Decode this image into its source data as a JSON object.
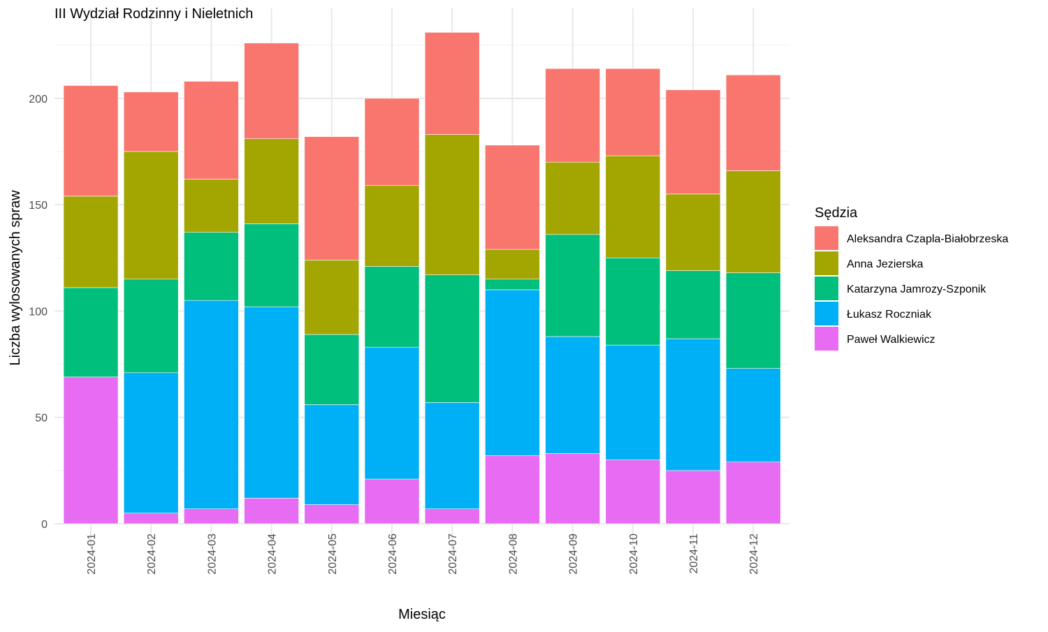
{
  "chart_data": {
    "type": "bar",
    "stacked": true,
    "title": "III Wydział Rodzinny i Nieletnich",
    "xlabel": "Miesiąc",
    "ylabel": "Liczba wylosowanych spraw",
    "ylim": [
      0,
      235
    ],
    "yticks": [
      0,
      50,
      100,
      150,
      200
    ],
    "grid": true,
    "legend_title": "Sędzia",
    "legend_position": "right",
    "categories": [
      "2024-01",
      "2024-02",
      "2024-03",
      "2024-04",
      "2024-05",
      "2024-06",
      "2024-07",
      "2024-08",
      "2024-09",
      "2024-10",
      "2024-11",
      "2024-12"
    ],
    "series": [
      {
        "name": "Paweł Walkiewicz",
        "color": "#E76BF3",
        "values": [
          69,
          5,
          7,
          12,
          9,
          21,
          7,
          32,
          33,
          30,
          25,
          29
        ]
      },
      {
        "name": "Łukasz Roczniak",
        "color": "#00B0F6",
        "values": [
          0,
          66,
          98,
          90,
          47,
          62,
          50,
          78,
          55,
          54,
          62,
          44
        ]
      },
      {
        "name": "Katarzyna Jamrozy-Szponik",
        "color": "#00BF7D",
        "values": [
          42,
          44,
          32,
          39,
          33,
          38,
          60,
          5,
          48,
          41,
          32,
          45
        ]
      },
      {
        "name": "Anna Jezierska",
        "color": "#A3A500",
        "values": [
          43,
          60,
          25,
          40,
          35,
          38,
          66,
          14,
          34,
          48,
          36,
          48
        ]
      },
      {
        "name": "Aleksandra Czapla-Białobrzeska",
        "color": "#F8766D",
        "values": [
          52,
          28,
          46,
          45,
          58,
          41,
          48,
          49,
          44,
          41,
          49,
          45
        ]
      }
    ],
    "legend_order": [
      "Aleksandra Czapla-Białobrzeska",
      "Anna Jezierska",
      "Katarzyna Jamrozy-Szponik",
      "Łukasz Roczniak",
      "Paweł Walkiewicz"
    ]
  }
}
